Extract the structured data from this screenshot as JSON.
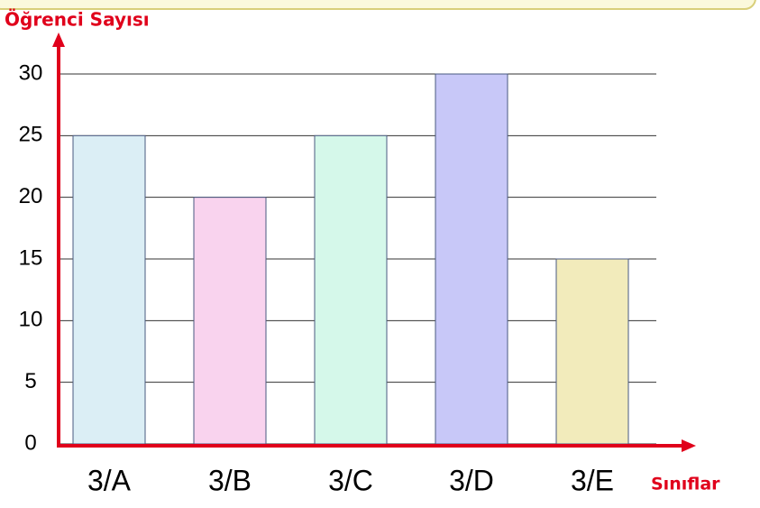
{
  "chart_data": {
    "type": "bar",
    "y_axis_label": "Öğrenci Sayısı",
    "x_axis_label": "Sınıflar",
    "categories": [
      "3/A",
      "3/B",
      "3/C",
      "3/D",
      "3/E"
    ],
    "values": [
      25,
      20,
      25,
      30,
      15
    ],
    "colors": [
      "#dbeef5",
      "#f9d3ee",
      "#d5f8ea",
      "#c8c8f8",
      "#f2ebbb"
    ],
    "ylim": [
      0,
      30
    ],
    "yticks": [
      0,
      5,
      10,
      15,
      20,
      25,
      30
    ],
    "grid": true
  }
}
